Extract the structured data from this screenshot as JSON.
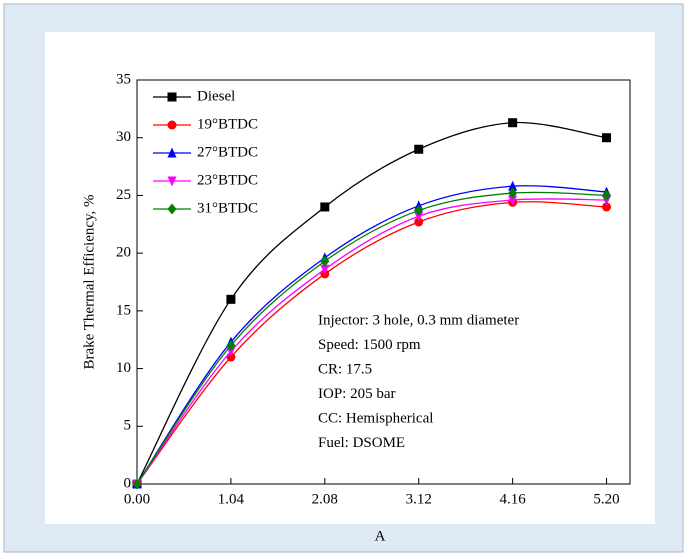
{
  "chart_data": {
    "type": "line",
    "x_label": "A",
    "y_label": "Brake Thermal Efficiency, %",
    "x": [
      0,
      1.04,
      2.08,
      3.12,
      4.16,
      5.2
    ],
    "xlim": [
      0,
      5.46
    ],
    "xticks": [
      {
        "value": 0,
        "label": "0.00"
      },
      1.04,
      2.08,
      3.12,
      4.16,
      {
        "value": 5.2,
        "label": "5.20"
      }
    ],
    "ylim": [
      0,
      35
    ],
    "yticks": [
      0,
      5,
      10,
      15,
      20,
      25,
      30,
      35
    ],
    "legend": "top-left",
    "series": [
      {
        "name": "Diesel",
        "color": "#000000",
        "marker": "square",
        "values": [
          0,
          16,
          24,
          29,
          31.3,
          30
        ]
      },
      {
        "name": "19°BTDC",
        "color": "#ff0000",
        "marker": "circle",
        "values": [
          0,
          11,
          18.2,
          22.7,
          24.4,
          24
        ]
      },
      {
        "name": "27°BTDC",
        "color": "#0000ff",
        "marker": "triangle-up",
        "values": [
          0,
          12.3,
          19.6,
          24.1,
          25.8,
          25.3
        ]
      },
      {
        "name": "23°BTDC",
        "color": "#ff00ff",
        "marker": "triangle-down",
        "values": [
          0,
          11.5,
          18.6,
          23.2,
          24.6,
          24.6
        ]
      },
      {
        "name": "31°BTDC",
        "color": "#008000",
        "marker": "diamond",
        "values": [
          0,
          12,
          19.3,
          23.7,
          25.2,
          25
        ]
      }
    ],
    "annotations": [
      "Injector: 3 hole, 0.3 mm diameter",
      "Speed: 1500 rpm",
      "CR: 17.5",
      "IOP: 205 bar",
      "CC: Hemispherical",
      "Fuel: DSOME"
    ]
  }
}
